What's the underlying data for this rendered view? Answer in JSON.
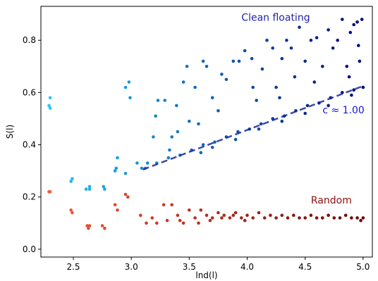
{
  "chart_data": {
    "type": "scatter",
    "xlabel": "lnd(l)",
    "ylabel": "S(l)",
    "xlim": [
      2.22,
      5.08
    ],
    "ylim": [
      -0.03,
      0.93
    ],
    "xticks": [
      2.5,
      3.0,
      3.5,
      4.0,
      4.5,
      5.0
    ],
    "xtick_labels": [
      "2.5",
      "3.0",
      "3.5",
      "4.0",
      "4.5",
      "5.0"
    ],
    "yticks": [
      0.0,
      0.2,
      0.4,
      0.6,
      0.8
    ],
    "ytick_labels": [
      "0.0",
      "0.2",
      "0.4",
      "0.6",
      "0.8"
    ],
    "grid": false,
    "annotations": [
      {
        "text": "Clean floating",
        "x": 3.95,
        "y": 0.875,
        "color": "#2222aa"
      },
      {
        "text": "c ≈ 1.00",
        "x": 4.65,
        "y": 0.52,
        "color": "#1515dd"
      },
      {
        "text": "Random",
        "x": 4.55,
        "y": 0.175,
        "color": "#8b1010"
      }
    ],
    "fit_line": {
      "x": [
        3.1,
        5.0
      ],
      "y": [
        0.305,
        0.625
      ],
      "color": "#1a2a9a",
      "style": "dashed"
    },
    "series": [
      {
        "color_scale": [
          "#22ccff",
          "#000070"
        ],
        "points": [
          [
            2.3,
            0.58
          ],
          [
            2.29,
            0.55
          ],
          [
            2.3,
            0.54
          ],
          [
            2.48,
            0.26
          ],
          [
            2.49,
            0.27
          ],
          [
            2.61,
            0.23
          ],
          [
            2.64,
            0.24
          ],
          [
            2.64,
            0.23
          ],
          [
            2.76,
            0.24
          ],
          [
            2.77,
            0.23
          ],
          [
            2.87,
            0.31
          ],
          [
            2.88,
            0.35
          ],
          [
            2.86,
            0.3
          ],
          [
            2.95,
            0.62
          ],
          [
            2.98,
            0.64
          ],
          [
            2.99,
            0.58
          ],
          [
            2.95,
            0.29
          ],
          [
            3.05,
            0.33
          ],
          [
            3.09,
            0.31
          ],
          [
            3.14,
            0.33
          ],
          [
            3.19,
            0.43
          ],
          [
            3.21,
            0.51
          ],
          [
            3.23,
            0.57
          ],
          [
            3.29,
            0.57
          ],
          [
            3.33,
            0.38
          ],
          [
            3.35,
            0.43
          ],
          [
            3.39,
            0.55
          ],
          [
            3.45,
            0.64
          ],
          [
            3.48,
            0.7
          ],
          [
            3.5,
            0.49
          ],
          [
            3.55,
            0.62
          ],
          [
            3.58,
            0.48
          ],
          [
            3.62,
            0.72
          ],
          [
            3.65,
            0.7
          ],
          [
            3.7,
            0.58
          ],
          [
            3.78,
            0.67
          ],
          [
            3.82,
            0.65
          ],
          [
            3.88,
            0.72
          ],
          [
            3.93,
            0.72
          ],
          [
            3.98,
            0.76
          ],
          [
            4.04,
            0.73
          ],
          [
            4.08,
            0.57
          ],
          [
            4.13,
            0.69
          ],
          [
            4.17,
            0.8
          ],
          [
            4.22,
            0.77
          ],
          [
            4.25,
            0.62
          ],
          [
            4.3,
            0.73
          ],
          [
            4.34,
            0.8
          ],
          [
            4.38,
            0.77
          ],
          [
            4.41,
            0.66
          ],
          [
            4.45,
            0.85
          ],
          [
            4.5,
            0.72
          ],
          [
            4.55,
            0.8
          ],
          [
            4.6,
            0.81
          ],
          [
            4.65,
            0.7
          ],
          [
            4.7,
            0.84
          ],
          [
            4.74,
            0.77
          ],
          [
            4.78,
            0.8
          ],
          [
            4.82,
            0.88
          ],
          [
            4.86,
            0.7
          ],
          [
            4.89,
            0.83
          ],
          [
            4.92,
            0.86
          ],
          [
            4.95,
            0.87
          ],
          [
            4.97,
            0.72
          ],
          [
            4.99,
            0.88
          ],
          [
            3.12,
            0.31
          ],
          [
            3.22,
            0.33
          ],
          [
            3.32,
            0.35
          ],
          [
            3.42,
            0.36
          ],
          [
            3.52,
            0.38
          ],
          [
            3.62,
            0.4
          ],
          [
            3.72,
            0.41
          ],
          [
            3.82,
            0.43
          ],
          [
            3.92,
            0.45
          ],
          [
            4.02,
            0.46
          ],
          [
            4.12,
            0.48
          ],
          [
            4.22,
            0.5
          ],
          [
            4.32,
            0.51
          ],
          [
            4.42,
            0.53
          ],
          [
            4.52,
            0.55
          ],
          [
            4.62,
            0.56
          ],
          [
            4.72,
            0.58
          ],
          [
            4.82,
            0.6
          ],
          [
            4.92,
            0.61
          ],
          [
            5.0,
            0.62
          ],
          [
            3.6,
            0.37
          ],
          [
            3.7,
            0.39
          ],
          [
            3.9,
            0.42
          ],
          [
            4.1,
            0.46
          ],
          [
            4.3,
            0.49
          ],
          [
            4.5,
            0.52
          ],
          [
            4.7,
            0.55
          ],
          [
            4.9,
            0.59
          ],
          [
            3.4,
            0.45
          ],
          [
            3.75,
            0.53
          ],
          [
            4.05,
            0.62
          ],
          [
            4.28,
            0.58
          ],
          [
            4.58,
            0.64
          ],
          [
            4.88,
            0.66
          ],
          [
            4.96,
            0.78
          ]
        ]
      },
      {
        "color_scale": [
          "#ff5a3a",
          "#6a0000"
        ],
        "points": [
          [
            2.29,
            0.22
          ],
          [
            2.3,
            0.22
          ],
          [
            2.48,
            0.15
          ],
          [
            2.49,
            0.14
          ],
          [
            2.62,
            0.09
          ],
          [
            2.63,
            0.08
          ],
          [
            2.64,
            0.09
          ],
          [
            2.75,
            0.09
          ],
          [
            2.77,
            0.08
          ],
          [
            2.86,
            0.17
          ],
          [
            2.88,
            0.15
          ],
          [
            2.95,
            0.21
          ],
          [
            2.97,
            0.2
          ],
          [
            3.08,
            0.13
          ],
          [
            3.13,
            0.1
          ],
          [
            3.18,
            0.12
          ],
          [
            3.22,
            0.1
          ],
          [
            3.28,
            0.17
          ],
          [
            3.31,
            0.11
          ],
          [
            3.35,
            0.17
          ],
          [
            3.4,
            0.13
          ],
          [
            3.45,
            0.1
          ],
          [
            3.5,
            0.15
          ],
          [
            3.55,
            0.12
          ],
          [
            3.6,
            0.15
          ],
          [
            3.65,
            0.13
          ],
          [
            3.7,
            0.12
          ],
          [
            3.75,
            0.14
          ],
          [
            3.8,
            0.13
          ],
          [
            3.85,
            0.12
          ],
          [
            3.9,
            0.14
          ],
          [
            3.95,
            0.12
          ],
          [
            4.0,
            0.13
          ],
          [
            4.05,
            0.12
          ],
          [
            4.1,
            0.14
          ],
          [
            4.15,
            0.12
          ],
          [
            4.2,
            0.13
          ],
          [
            4.25,
            0.12
          ],
          [
            4.3,
            0.13
          ],
          [
            4.35,
            0.12
          ],
          [
            4.4,
            0.13
          ],
          [
            4.45,
            0.12
          ],
          [
            4.5,
            0.12
          ],
          [
            4.55,
            0.13
          ],
          [
            4.6,
            0.12
          ],
          [
            4.65,
            0.12
          ],
          [
            4.7,
            0.13
          ],
          [
            4.75,
            0.12
          ],
          [
            4.8,
            0.12
          ],
          [
            4.85,
            0.13
          ],
          [
            4.9,
            0.12
          ],
          [
            4.95,
            0.12
          ],
          [
            4.98,
            0.11
          ],
          [
            5.0,
            0.12
          ],
          [
            3.42,
            0.11
          ],
          [
            3.58,
            0.1
          ],
          [
            3.68,
            0.11
          ],
          [
            3.78,
            0.12
          ],
          [
            3.88,
            0.13
          ],
          [
            3.98,
            0.11
          ]
        ]
      }
    ]
  }
}
